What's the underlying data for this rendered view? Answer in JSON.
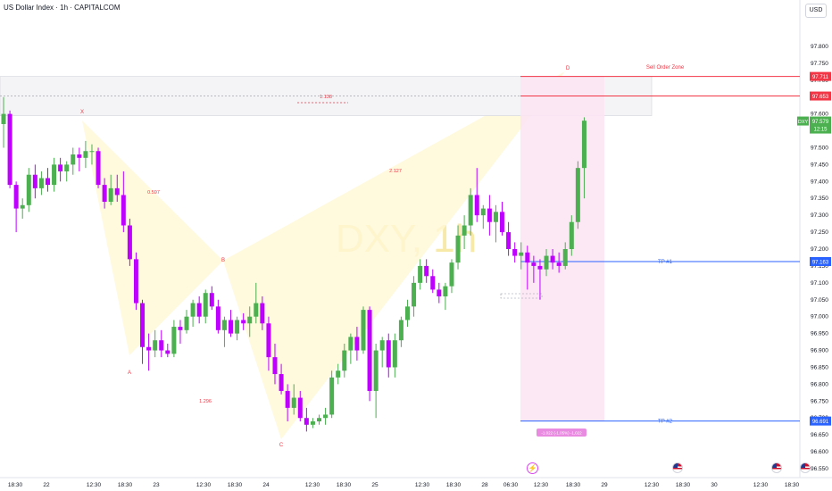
{
  "header": {
    "title": "US Dollar Index · 1h · CAPITALCOM",
    "currency_button": "USD"
  },
  "watermark": "DXY, 1h",
  "chart_data": {
    "type": "candlestick",
    "symbol": "DXY",
    "timeframe": "1h",
    "ylim": [
      96.55,
      97.85
    ],
    "y_ticks": [
      97.8,
      97.75,
      97.7,
      97.65,
      97.6,
      97.55,
      97.5,
      97.45,
      97.4,
      97.35,
      97.3,
      97.25,
      97.2,
      97.15,
      97.1,
      97.05,
      97.0,
      96.95,
      96.9,
      96.85,
      96.8,
      96.75,
      96.7,
      96.65,
      96.6,
      96.55
    ],
    "x_tick_labels": [
      "18:30",
      "22",
      "12:30",
      "18:30",
      "23",
      "12:30",
      "18:30",
      "24",
      "12:30",
      "18:30",
      "25",
      "12:30",
      "18:30",
      "28",
      "06:30",
      "12:30",
      "18:30",
      "29",
      "12:30",
      "18:30",
      "30",
      "12:30",
      "18:30"
    ],
    "candles": [
      {
        "o": 97.57,
        "h": 97.65,
        "l": 97.5,
        "c": 97.6
      },
      {
        "o": 97.6,
        "h": 97.61,
        "l": 97.38,
        "c": 97.39
      },
      {
        "o": 97.39,
        "h": 97.4,
        "l": 97.25,
        "c": 97.32
      },
      {
        "o": 97.32,
        "h": 97.35,
        "l": 97.29,
        "c": 97.33
      },
      {
        "o": 97.33,
        "h": 97.44,
        "l": 97.31,
        "c": 97.42
      },
      {
        "o": 97.42,
        "h": 97.45,
        "l": 97.35,
        "c": 97.38
      },
      {
        "o": 97.38,
        "h": 97.43,
        "l": 97.36,
        "c": 97.41
      },
      {
        "o": 97.41,
        "h": 97.44,
        "l": 97.37,
        "c": 97.39
      },
      {
        "o": 97.39,
        "h": 97.47,
        "l": 97.37,
        "c": 97.45
      },
      {
        "o": 97.45,
        "h": 97.47,
        "l": 97.4,
        "c": 97.43
      },
      {
        "o": 97.43,
        "h": 97.46,
        "l": 97.4,
        "c": 97.45
      },
      {
        "o": 97.45,
        "h": 97.5,
        "l": 97.42,
        "c": 97.48
      },
      {
        "o": 97.48,
        "h": 97.5,
        "l": 97.43,
        "c": 97.47
      },
      {
        "o": 97.47,
        "h": 97.52,
        "l": 97.44,
        "c": 97.49
      },
      {
        "o": 97.49,
        "h": 97.51,
        "l": 97.45,
        "c": 97.49
      },
      {
        "o": 97.49,
        "h": 97.5,
        "l": 97.38,
        "c": 97.39
      },
      {
        "o": 97.39,
        "h": 97.41,
        "l": 97.32,
        "c": 97.34
      },
      {
        "o": 97.34,
        "h": 97.42,
        "l": 97.33,
        "c": 97.38
      },
      {
        "o": 97.38,
        "h": 97.42,
        "l": 97.34,
        "c": 97.36
      },
      {
        "o": 97.36,
        "h": 97.43,
        "l": 97.25,
        "c": 97.27
      },
      {
        "o": 97.27,
        "h": 97.29,
        "l": 97.15,
        "c": 97.17
      },
      {
        "o": 97.17,
        "h": 97.19,
        "l": 97.02,
        "c": 97.04
      },
      {
        "o": 97.04,
        "h": 97.05,
        "l": 96.86,
        "c": 96.91
      },
      {
        "o": 96.91,
        "h": 96.95,
        "l": 96.84,
        "c": 96.9
      },
      {
        "o": 96.9,
        "h": 96.96,
        "l": 96.88,
        "c": 96.93
      },
      {
        "o": 96.93,
        "h": 96.96,
        "l": 96.88,
        "c": 96.9
      },
      {
        "o": 96.9,
        "h": 96.92,
        "l": 96.88,
        "c": 96.89
      },
      {
        "o": 96.89,
        "h": 96.99,
        "l": 96.88,
        "c": 96.97
      },
      {
        "o": 96.97,
        "h": 96.99,
        "l": 96.92,
        "c": 96.96
      },
      {
        "o": 96.96,
        "h": 97.02,
        "l": 96.95,
        "c": 97.0
      },
      {
        "o": 97.0,
        "h": 97.05,
        "l": 96.97,
        "c": 97.04
      },
      {
        "o": 97.04,
        "h": 97.06,
        "l": 96.98,
        "c": 97.0
      },
      {
        "o": 97.0,
        "h": 97.08,
        "l": 96.98,
        "c": 97.07
      },
      {
        "o": 97.07,
        "h": 97.09,
        "l": 97.02,
        "c": 97.03
      },
      {
        "o": 97.03,
        "h": 97.05,
        "l": 96.95,
        "c": 96.96
      },
      {
        "o": 96.96,
        "h": 97.0,
        "l": 96.91,
        "c": 96.99
      },
      {
        "o": 96.99,
        "h": 97.02,
        "l": 96.94,
        "c": 96.95
      },
      {
        "o": 96.95,
        "h": 97.0,
        "l": 96.93,
        "c": 96.99
      },
      {
        "o": 96.99,
        "h": 97.01,
        "l": 96.96,
        "c": 96.98
      },
      {
        "o": 96.98,
        "h": 97.03,
        "l": 96.94,
        "c": 97.0
      },
      {
        "o": 97.0,
        "h": 97.1,
        "l": 96.98,
        "c": 97.04
      },
      {
        "o": 97.04,
        "h": 97.06,
        "l": 96.96,
        "c": 96.98
      },
      {
        "o": 96.98,
        "h": 97.0,
        "l": 96.84,
        "c": 96.88
      },
      {
        "o": 96.88,
        "h": 96.92,
        "l": 96.8,
        "c": 96.83
      },
      {
        "o": 96.83,
        "h": 96.86,
        "l": 96.77,
        "c": 96.78
      },
      {
        "o": 96.78,
        "h": 96.8,
        "l": 96.69,
        "c": 96.73
      },
      {
        "o": 96.73,
        "h": 96.8,
        "l": 96.71,
        "c": 96.76
      },
      {
        "o": 96.76,
        "h": 96.78,
        "l": 96.69,
        "c": 96.7
      },
      {
        "o": 96.7,
        "h": 96.73,
        "l": 96.66,
        "c": 96.68
      },
      {
        "o": 96.68,
        "h": 96.7,
        "l": 96.67,
        "c": 96.69
      },
      {
        "o": 96.69,
        "h": 96.71,
        "l": 96.68,
        "c": 96.7
      },
      {
        "o": 96.7,
        "h": 96.73,
        "l": 96.68,
        "c": 96.71
      },
      {
        "o": 96.71,
        "h": 96.84,
        "l": 96.7,
        "c": 96.82
      },
      {
        "o": 96.82,
        "h": 96.86,
        "l": 96.8,
        "c": 96.84
      },
      {
        "o": 96.84,
        "h": 96.92,
        "l": 96.82,
        "c": 96.9
      },
      {
        "o": 96.9,
        "h": 96.95,
        "l": 96.86,
        "c": 96.94
      },
      {
        "o": 96.94,
        "h": 96.97,
        "l": 96.87,
        "c": 96.9
      },
      {
        "o": 96.9,
        "h": 97.03,
        "l": 96.89,
        "c": 97.02
      },
      {
        "o": 97.02,
        "h": 97.03,
        "l": 96.75,
        "c": 96.78
      },
      {
        "o": 96.78,
        "h": 96.92,
        "l": 96.7,
        "c": 96.9
      },
      {
        "o": 96.9,
        "h": 96.94,
        "l": 96.85,
        "c": 96.93
      },
      {
        "o": 96.93,
        "h": 96.95,
        "l": 96.82,
        "c": 96.85
      },
      {
        "o": 96.85,
        "h": 96.95,
        "l": 96.82,
        "c": 96.93
      },
      {
        "o": 96.93,
        "h": 97.0,
        "l": 96.91,
        "c": 96.99
      },
      {
        "o": 96.99,
        "h": 97.05,
        "l": 96.97,
        "c": 97.03
      },
      {
        "o": 97.03,
        "h": 97.12,
        "l": 97.0,
        "c": 97.1
      },
      {
        "o": 97.1,
        "h": 97.17,
        "l": 97.08,
        "c": 97.15
      },
      {
        "o": 97.15,
        "h": 97.17,
        "l": 97.1,
        "c": 97.12
      },
      {
        "o": 97.12,
        "h": 97.14,
        "l": 97.07,
        "c": 97.08
      },
      {
        "o": 97.08,
        "h": 97.1,
        "l": 97.04,
        "c": 97.06
      },
      {
        "o": 97.06,
        "h": 97.1,
        "l": 97.02,
        "c": 97.09
      },
      {
        "o": 97.09,
        "h": 97.17,
        "l": 97.07,
        "c": 97.16
      },
      {
        "o": 97.16,
        "h": 97.27,
        "l": 97.14,
        "c": 97.24
      },
      {
        "o": 97.24,
        "h": 97.3,
        "l": 97.2,
        "c": 97.27
      },
      {
        "o": 97.27,
        "h": 97.38,
        "l": 97.24,
        "c": 97.36
      },
      {
        "o": 97.36,
        "h": 97.44,
        "l": 97.28,
        "c": 97.3
      },
      {
        "o": 97.3,
        "h": 97.33,
        "l": 97.26,
        "c": 97.32
      },
      {
        "o": 97.32,
        "h": 97.36,
        "l": 97.24,
        "c": 97.28
      },
      {
        "o": 97.28,
        "h": 97.33,
        "l": 97.22,
        "c": 97.31
      },
      {
        "o": 97.31,
        "h": 97.34,
        "l": 97.24,
        "c": 97.25
      },
      {
        "o": 97.25,
        "h": 97.28,
        "l": 97.18,
        "c": 97.2
      },
      {
        "o": 97.2,
        "h": 97.22,
        "l": 97.16,
        "c": 97.18
      },
      {
        "o": 97.18,
        "h": 97.22,
        "l": 97.14,
        "c": 97.19
      },
      {
        "o": 97.19,
        "h": 97.21,
        "l": 97.08,
        "c": 97.16
      },
      {
        "o": 97.16,
        "h": 97.18,
        "l": 97.1,
        "c": 97.15
      },
      {
        "o": 97.15,
        "h": 97.17,
        "l": 97.05,
        "c": 97.14
      },
      {
        "o": 97.14,
        "h": 97.2,
        "l": 97.12,
        "c": 97.18
      },
      {
        "o": 97.18,
        "h": 97.2,
        "l": 97.14,
        "c": 97.16
      },
      {
        "o": 97.16,
        "h": 97.19,
        "l": 97.13,
        "c": 97.15
      },
      {
        "o": 97.15,
        "h": 97.22,
        "l": 97.14,
        "c": 97.2
      },
      {
        "o": 97.2,
        "h": 97.3,
        "l": 97.18,
        "c": 97.28
      },
      {
        "o": 97.28,
        "h": 97.46,
        "l": 97.26,
        "c": 97.44
      },
      {
        "o": 97.44,
        "h": 97.59,
        "l": 97.35,
        "c": 97.58
      }
    ],
    "annotations": {
      "harmonic_points": [
        "X",
        "A",
        "B",
        "C",
        "D"
      ],
      "ratios": [
        "0.597",
        "1.296",
        "2.127",
        "1.138"
      ],
      "sell_order_zone": {
        "label": "Sell Order Zone",
        "upper": 97.711,
        "lower": 97.653
      },
      "take_profits": [
        {
          "label": "TP #1",
          "price": 97.163
        },
        {
          "label": "TP #2",
          "price": 96.691
        }
      ],
      "measure_label": "-1.022 (-1.05%) -1,022"
    },
    "price_labels": [
      {
        "value": "97.711",
        "color": "#f23645"
      },
      {
        "value": "97.653",
        "color": "#f23645"
      },
      {
        "value": "97.579",
        "color": "#4caf50",
        "symbol": "DXY",
        "countdown": "12:15"
      },
      {
        "value": "97.163",
        "color": "#2962ff"
      },
      {
        "value": "96.691",
        "color": "#2962ff"
      }
    ]
  },
  "colors": {
    "up": "#4caf50",
    "down": "#bd00ff",
    "sell_zone": "#f23645",
    "tp_line": "#2962ff",
    "pattern_fill": "#fff8d6",
    "projection_fill": "#fce4f3"
  }
}
